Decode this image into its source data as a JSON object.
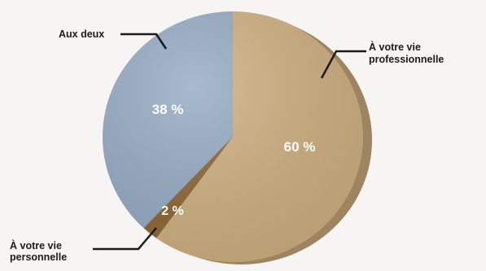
{
  "chart_data": {
    "type": "pie",
    "slices": [
      {
        "name": "À votre vie professionnelle",
        "lines": [
          "À votre vie",
          "professionnelle"
        ],
        "value": 60,
        "label": "60 %",
        "color": "#cfb081"
      },
      {
        "name": "À votre vie personnelle",
        "lines": [
          "À votre vie",
          "personnelle"
        ],
        "value": 2,
        "label": "2 %",
        "color": "#8f6533"
      },
      {
        "name": "Aux deux",
        "lines": [
          "Aux deux"
        ],
        "value": 38,
        "label": "38 %",
        "color": "#95abc3"
      }
    ],
    "legend": "callouts"
  }
}
